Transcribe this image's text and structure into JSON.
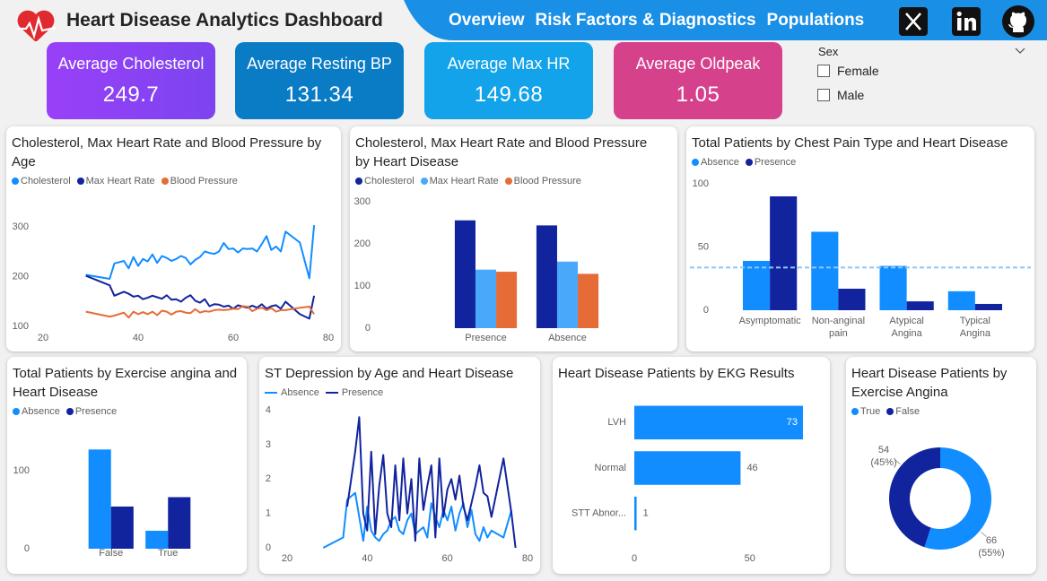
{
  "header": {
    "title": "Heart Disease Analytics Dashboard",
    "nav": [
      "Overview",
      "Risk Factors & Diagnostics",
      "Populations"
    ]
  },
  "kpis": [
    {
      "label": "Average Cholesterol",
      "value": 249.7
    },
    {
      "label": "Average Resting BP",
      "value": 131.34
    },
    {
      "label": "Average Max HR",
      "value": 149.68
    },
    {
      "label": "Average Oldpeak",
      "value": 1.05
    }
  ],
  "slicer": {
    "title": "Sex",
    "options": [
      "Female",
      "Male"
    ]
  },
  "chart_data": [
    {
      "type": "line",
      "title": "Cholesterol, Max Heart Rate and Blood Pressure by Age",
      "x": [
        29,
        34,
        35,
        37,
        38,
        39,
        40,
        41,
        42,
        43,
        44,
        45,
        46,
        47,
        48,
        49,
        50,
        51,
        52,
        53,
        54,
        55,
        56,
        57,
        58,
        59,
        60,
        61,
        62,
        63,
        64,
        65,
        66,
        67,
        68,
        69,
        70,
        71,
        74,
        76,
        77
      ],
      "xlim": [
        20,
        80
      ],
      "xticks": [
        20,
        40,
        60,
        80
      ],
      "ylim": [
        86,
        360
      ],
      "yticks": [
        100,
        200,
        300
      ],
      "series": [
        {
          "name": "Cholesterol",
          "color": "#118dff",
          "values": [
            204,
            196,
            227,
            232,
            217,
            240,
            222,
            236,
            231,
            245,
            228,
            242,
            238,
            232,
            236,
            242,
            238,
            225,
            234,
            240,
            251,
            248,
            246,
            251,
            268,
            256,
            257,
            249,
            257,
            256,
            257,
            251,
            266,
            282,
            254,
            261,
            251,
            291,
            269,
            197,
            304
          ]
        },
        {
          "name": "Max Heart Rate",
          "color": "#12239e",
          "values": [
            202,
            183,
            162,
            170,
            166,
            160,
            162,
            155,
            158,
            162,
            159,
            156,
            163,
            154,
            155,
            150,
            158,
            163,
            152,
            148,
            155,
            141,
            145,
            144,
            140,
            142,
            136,
            143,
            140,
            138,
            142,
            138,
            145,
            136,
            141,
            143,
            136,
            150,
            125,
            116,
            162
          ]
        },
        {
          "name": "Blood Pressure",
          "color": "#e66c37",
          "values": [
            130,
            120,
            122,
            128,
            118,
            130,
            125,
            129,
            125,
            130,
            123,
            132,
            130,
            124,
            130,
            131,
            128,
            127,
            135,
            128,
            131,
            130,
            133,
            134,
            133,
            134,
            136,
            135,
            141,
            140,
            131,
            136,
            138,
            133,
            137,
            130,
            133,
            133,
            138,
            140,
            125
          ]
        }
      ]
    },
    {
      "type": "bar",
      "title": "Cholesterol, Max Heart Rate and Blood Pressure by Heart Disease",
      "categories": [
        "Presence",
        "Absence"
      ],
      "ylim": [
        0,
        330
      ],
      "yticks": [
        0,
        100,
        200,
        300
      ],
      "series": [
        {
          "name": "Cholesterol",
          "color": "#12239e",
          "values": [
            256,
            244
          ]
        },
        {
          "name": "Max Heart Rate",
          "color": "#4aa8fb",
          "values": [
            139,
            158
          ]
        },
        {
          "name": "Blood Pressure",
          "color": "#e66c37",
          "values": [
            134,
            129
          ]
        }
      ]
    },
    {
      "type": "bar",
      "title": "Total Patients by Chest Pain Type and Heart Disease",
      "categories": [
        "Asymptomatic",
        "Non-anginal pain",
        "Atypical Angina",
        "Typical Angina"
      ],
      "ylim": [
        0,
        107
      ],
      "yticks": [
        0,
        50,
        100
      ],
      "average_line": 33.75,
      "average_color": "#8cc8f8",
      "series": [
        {
          "name": "Absence",
          "color": "#118dff",
          "values": [
            39,
            62,
            35,
            15
          ]
        },
        {
          "name": "Presence",
          "color": "#12239e",
          "values": [
            90,
            17,
            7,
            5
          ]
        }
      ]
    },
    {
      "type": "bar",
      "title": "Total Patients by Exercise angina and Heart Disease",
      "categories": [
        "False",
        "True"
      ],
      "ylim": [
        0,
        140
      ],
      "yticks": [
        0,
        100
      ],
      "series": [
        {
          "name": "Absence",
          "color": "#118dff",
          "values": [
            127,
            23
          ]
        },
        {
          "name": "Presence",
          "color": "#12239e",
          "values": [
            54,
            66
          ]
        }
      ]
    },
    {
      "type": "line",
      "title": "ST Depression by Age and Heart Disease",
      "legend_marker": "line",
      "x": [
        29,
        34,
        35,
        37,
        38,
        39,
        40,
        41,
        42,
        43,
        44,
        45,
        46,
        47,
        48,
        49,
        50,
        51,
        52,
        53,
        54,
        55,
        56,
        57,
        58,
        59,
        60,
        61,
        62,
        63,
        64,
        65,
        66,
        67,
        68,
        69,
        70,
        71,
        74,
        76,
        77
      ],
      "xlim": [
        20,
        80
      ],
      "xticks": [
        20,
        40,
        60,
        80
      ],
      "ylim": [
        0,
        4.2
      ],
      "yticks": [
        0,
        1,
        2,
        3,
        4
      ],
      "series": [
        {
          "name": "Absence",
          "color": "#118dff",
          "values": [
            0,
            0.3,
            1.4,
            1.6,
            0.9,
            0.2,
            1.2,
            0.5,
            0.3,
            0.2,
            0.4,
            0.5,
            0.8,
            0.9,
            0.5,
            0.4,
            0.8,
            1.0,
            0.4,
            0.5,
            0.6,
            0.3,
            1.3,
            0.9,
            0.6,
            1.1,
            0.8,
            1.2,
            0.5,
            1.0,
            1.3,
            0.6,
            1.1,
            0.4,
            0.2,
            0.6,
            0.3,
            0.5,
            0.3,
            1.1,
            null
          ]
        },
        {
          "name": "Presence",
          "color": "#12239e",
          "values": [
            null,
            null,
            1.2,
            2.8,
            3.8,
            1.0,
            0.5,
            2.8,
            0.4,
            1.8,
            2.7,
            1.0,
            0.6,
            2.4,
            0.8,
            2.6,
            1.0,
            2.0,
            0.2,
            2.6,
            1.1,
            1.8,
            2.4,
            0.3,
            2.6,
            0.9,
            1.7,
            2.0,
            1.4,
            2.1,
            1.2,
            0.8,
            1.3,
            1.8,
            2.4,
            1.6,
            1.5,
            0.9,
            2.6,
            1.0,
            0
          ]
        }
      ]
    },
    {
      "type": "hbar",
      "title": "Heart Disease Patients by EKG Results",
      "categories": [
        "LVH",
        "Normal",
        "STT Abnor..."
      ],
      "values": [
        73,
        46,
        1
      ],
      "color": "#118dff",
      "xlim": [
        0,
        80
      ],
      "xticks": [
        0,
        50
      ]
    },
    {
      "type": "donut",
      "title": "Heart Disease Patients by Exercise Angina",
      "categories": [
        "True",
        "False"
      ],
      "values": [
        66,
        54
      ],
      "colors": [
        "#118dff",
        "#12239e"
      ],
      "percent_labels": [
        "(55%)",
        "(45%)"
      ]
    }
  ]
}
